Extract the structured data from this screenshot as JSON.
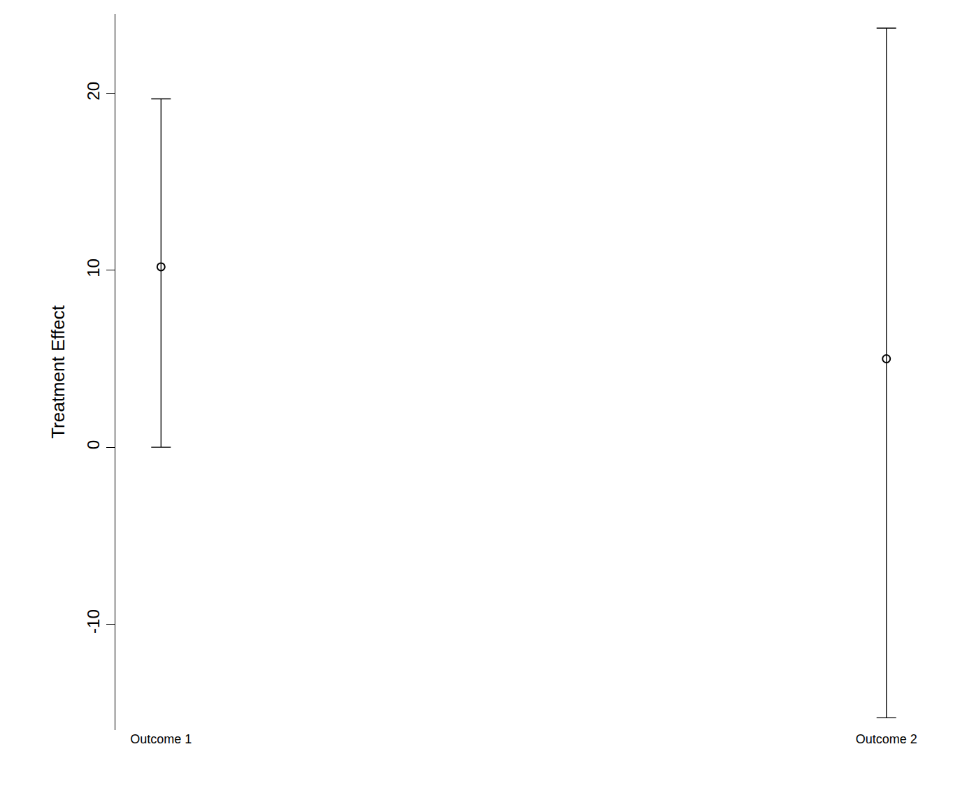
{
  "chart_data": {
    "type": "scatter",
    "categories": [
      "Outcome 1",
      "Outcome 2"
    ],
    "values": [
      10.2,
      5.0
    ],
    "error_lower": [
      0,
      -15.3
    ],
    "error_upper": [
      19.7,
      23.7
    ],
    "y_label": "Treatment Effect",
    "ylim": [
      -16,
      24.5
    ],
    "yticks": [
      -10,
      0,
      10,
      20
    ],
    "grid": false,
    "color": "#000000",
    "marker": "circle-open"
  }
}
